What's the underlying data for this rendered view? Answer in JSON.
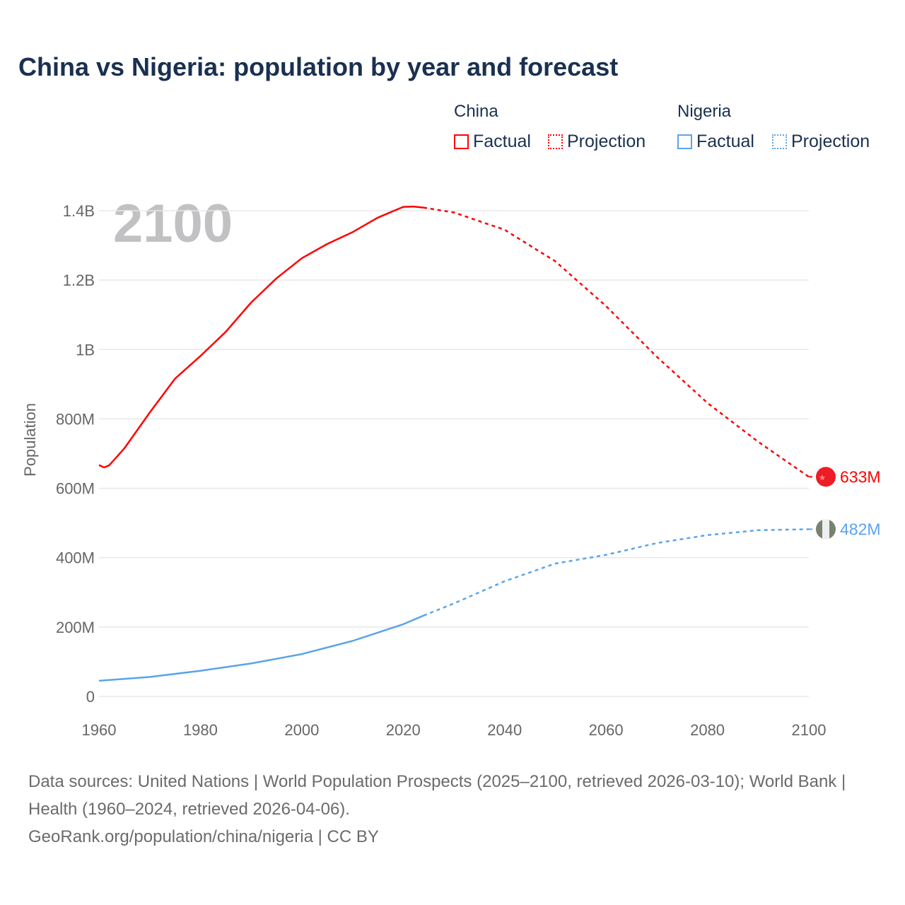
{
  "title": "China vs Nigeria: population by year and forecast",
  "legend": {
    "groups": [
      {
        "name": "China",
        "factual": "Factual",
        "projection": "Projection",
        "color": "#ff0000"
      },
      {
        "name": "Nigeria",
        "factual": "Factual",
        "projection": "Projection",
        "color": "#5ba4ea"
      }
    ]
  },
  "footer": {
    "sources": "Data sources: United Nations | World Population Prospects (2025–2100, retrieved 2026-03-10); World Bank | Health (1960–2024, retrieved 2026-04-06).",
    "link": "GeoRank.org/population/china/nigeria | CC BY"
  },
  "chart_data": {
    "type": "line",
    "title": "China vs Nigeria: population by year and forecast",
    "year_label": "2100",
    "xlabel": "",
    "ylabel": "Population",
    "xlim": [
      1960,
      2100
    ],
    "ylim": [
      0,
      1400
    ],
    "units": "millions",
    "x_ticks": [
      "1960",
      "1980",
      "2000",
      "2020",
      "2040",
      "2060",
      "2080",
      "2100"
    ],
    "y_ticks": [
      {
        "v": 0,
        "label": "0"
      },
      {
        "v": 200,
        "label": "200M"
      },
      {
        "v": 400,
        "label": "400M"
      },
      {
        "v": 600,
        "label": "600M"
      },
      {
        "v": 800,
        "label": "800M"
      },
      {
        "v": 1000,
        "label": "1B"
      },
      {
        "v": 1200,
        "label": "1.2B"
      },
      {
        "v": 1400,
        "label": "1.4B"
      }
    ],
    "grid": true,
    "series": [
      {
        "name": "China",
        "color": "#ff0000",
        "end_label": "633M",
        "factual": [
          [
            1960,
            667
          ],
          [
            1961,
            660
          ],
          [
            1962,
            666
          ],
          [
            1963,
            682
          ],
          [
            1965,
            715
          ],
          [
            1970,
            818
          ],
          [
            1975,
            916
          ],
          [
            1980,
            981
          ],
          [
            1985,
            1051
          ],
          [
            1990,
            1135
          ],
          [
            1995,
            1205
          ],
          [
            2000,
            1263
          ],
          [
            2005,
            1304
          ],
          [
            2010,
            1338
          ],
          [
            2015,
            1380
          ],
          [
            2020,
            1411
          ],
          [
            2022,
            1412
          ],
          [
            2024,
            1409
          ]
        ],
        "projection": [
          [
            2024,
            1409
          ],
          [
            2030,
            1395
          ],
          [
            2040,
            1345
          ],
          [
            2050,
            1254
          ],
          [
            2060,
            1125
          ],
          [
            2070,
            979
          ],
          [
            2080,
            846
          ],
          [
            2090,
            734
          ],
          [
            2100,
            633
          ]
        ]
      },
      {
        "name": "Nigeria",
        "color": "#5ba4ea",
        "end_label": "482M",
        "factual": [
          [
            1960,
            45
          ],
          [
            1970,
            56
          ],
          [
            1980,
            74
          ],
          [
            1990,
            95
          ],
          [
            2000,
            122
          ],
          [
            2010,
            160
          ],
          [
            2020,
            208
          ],
          [
            2024,
            233
          ]
        ],
        "projection": [
          [
            2024,
            233
          ],
          [
            2030,
            268
          ],
          [
            2040,
            332
          ],
          [
            2050,
            383
          ],
          [
            2060,
            408
          ],
          [
            2070,
            442
          ],
          [
            2080,
            465
          ],
          [
            2090,
            479
          ],
          [
            2100,
            482
          ]
        ]
      }
    ]
  }
}
